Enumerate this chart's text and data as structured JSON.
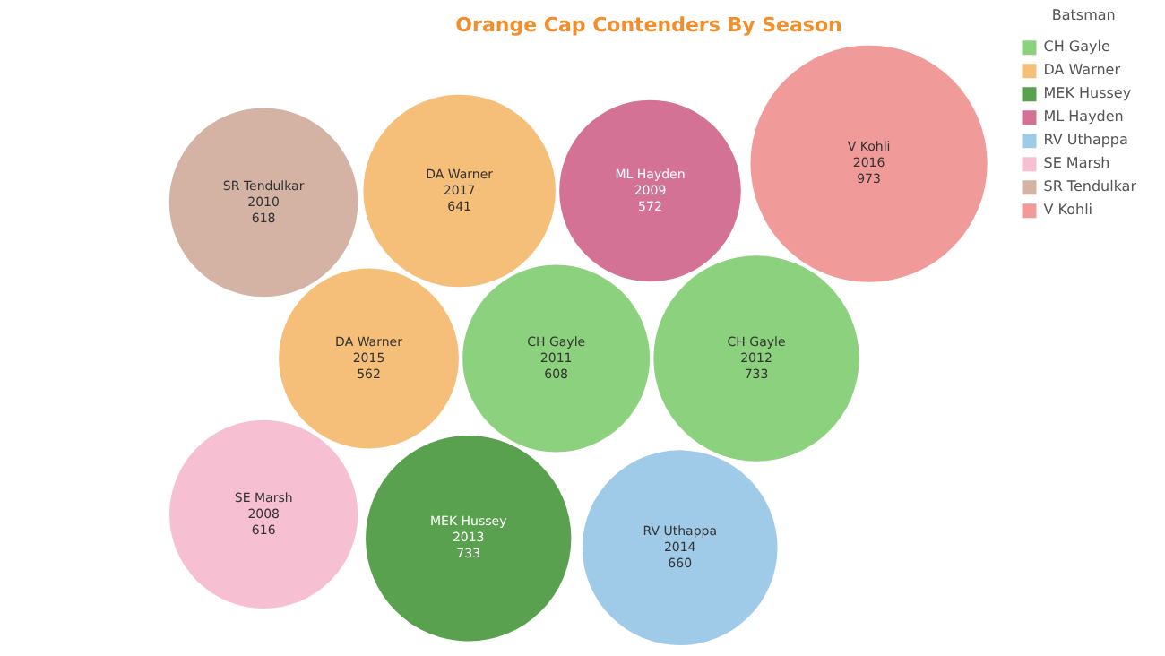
{
  "chart_data": {
    "type": "other",
    "title": "Orange Cap Contenders By Season",
    "legend_title": "Batsman",
    "legend": "right",
    "data_labels": true,
    "categories": [
      "2008",
      "2009",
      "2010",
      "2011",
      "2012",
      "2013",
      "2014",
      "2015",
      "2016",
      "2017"
    ],
    "series": [
      {
        "name": "CH Gayle",
        "color": "#8cd17d",
        "values": [
          null,
          null,
          null,
          608,
          733,
          null,
          null,
          null,
          null,
          null
        ]
      },
      {
        "name": "DA Warner",
        "color": "#f5be79",
        "values": [
          null,
          null,
          null,
          null,
          null,
          null,
          null,
          562,
          null,
          641
        ]
      },
      {
        "name": "MEK Hussey",
        "color": "#59a14f",
        "values": [
          null,
          null,
          null,
          null,
          null,
          733,
          null,
          null,
          null,
          null
        ]
      },
      {
        "name": "ML Hayden",
        "color": "#d37295",
        "values": [
          null,
          572,
          null,
          null,
          null,
          null,
          null,
          null,
          null,
          null
        ]
      },
      {
        "name": "RV Uthappa",
        "color": "#a0cbe8",
        "values": [
          null,
          null,
          null,
          null,
          null,
          null,
          660,
          null,
          null,
          null
        ]
      },
      {
        "name": "SE Marsh",
        "color": "#f6c0d2",
        "values": [
          616,
          null,
          null,
          null,
          null,
          null,
          null,
          null,
          null,
          null
        ]
      },
      {
        "name": "SR Tendulkar",
        "color": "#d4b2a4",
        "values": [
          null,
          null,
          618,
          null,
          null,
          null,
          null,
          null,
          null,
          null
        ]
      },
      {
        "name": "V Kohli",
        "color": "#f09b9a",
        "values": [
          null,
          null,
          null,
          null,
          null,
          null,
          null,
          null,
          973,
          null
        ]
      }
    ]
  }
}
